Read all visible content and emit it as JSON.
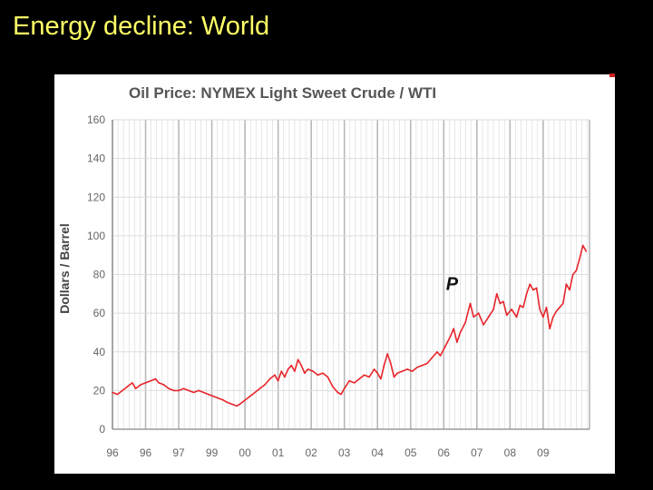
{
  "slide": {
    "title": "Energy decline: World"
  },
  "colors": {
    "background": "#000000",
    "title": "#ffff66",
    "line": "#e8252b",
    "major_grid": "#b8b8b8",
    "minor_grid": "#dddddd"
  },
  "chart_data": {
    "type": "line",
    "title": "Oil Price: NYMEX Light Sweet Crude / WTI",
    "xlabel": "",
    "ylabel": "Dollars / Barrel",
    "ylim": [
      0,
      160
    ],
    "xlim": [
      1995.6,
      2010.0
    ],
    "yticks": [
      0,
      20,
      40,
      60,
      80,
      100,
      120,
      140,
      160
    ],
    "xticks": [
      {
        "label": "96",
        "x": 1995.6
      },
      {
        "label": "96",
        "x": 1996.6
      },
      {
        "label": "97",
        "x": 1997.6
      },
      {
        "label": "99",
        "x": 1998.6
      },
      {
        "label": "00",
        "x": 1999.6
      },
      {
        "label": "01",
        "x": 2000.6
      },
      {
        "label": "02",
        "x": 2001.6
      },
      {
        "label": "03",
        "x": 2002.6
      },
      {
        "label": "04",
        "x": 2003.6
      },
      {
        "label": "05",
        "x": 2004.6
      },
      {
        "label": "06",
        "x": 2005.6
      },
      {
        "label": "07",
        "x": 2006.6
      },
      {
        "label": "08",
        "x": 2007.6
      },
      {
        "label": "09",
        "x": 2008.6
      }
    ],
    "grid": true,
    "series": [
      {
        "values": [
          [
            1995.6,
            19
          ],
          [
            1995.75,
            18
          ],
          [
            1995.9,
            20
          ],
          [
            1996.05,
            22
          ],
          [
            1996.2,
            24
          ],
          [
            1996.3,
            21
          ],
          [
            1996.45,
            23
          ],
          [
            1996.6,
            24
          ],
          [
            1996.75,
            25
          ],
          [
            1996.9,
            26
          ],
          [
            1997.0,
            24
          ],
          [
            1997.15,
            23
          ],
          [
            1997.3,
            21
          ],
          [
            1997.45,
            20
          ],
          [
            1997.6,
            20
          ],
          [
            1997.75,
            21
          ],
          [
            1997.9,
            20
          ],
          [
            1998.05,
            19
          ],
          [
            1998.2,
            20
          ],
          [
            1998.35,
            19
          ],
          [
            1998.5,
            18
          ],
          [
            1998.65,
            17
          ],
          [
            1998.8,
            16
          ],
          [
            1998.95,
            15
          ],
          [
            1999.05,
            14
          ],
          [
            1999.2,
            13
          ],
          [
            1999.35,
            12
          ],
          [
            1999.45,
            13
          ],
          [
            1999.6,
            15
          ],
          [
            1999.75,
            17
          ],
          [
            1999.9,
            19
          ],
          [
            2000.05,
            21
          ],
          [
            2000.2,
            23
          ],
          [
            2000.35,
            26
          ],
          [
            2000.5,
            28
          ],
          [
            2000.6,
            25
          ],
          [
            2000.7,
            30
          ],
          [
            2000.8,
            27
          ],
          [
            2000.9,
            31
          ],
          [
            2001.0,
            33
          ],
          [
            2001.1,
            30
          ],
          [
            2001.2,
            36
          ],
          [
            2001.3,
            33
          ],
          [
            2001.4,
            29
          ],
          [
            2001.5,
            31
          ],
          [
            2001.65,
            30
          ],
          [
            2001.8,
            28
          ],
          [
            2001.95,
            29
          ],
          [
            2002.1,
            27
          ],
          [
            2002.25,
            22
          ],
          [
            2002.4,
            19
          ],
          [
            2002.5,
            18
          ],
          [
            2002.6,
            21
          ],
          [
            2002.75,
            25
          ],
          [
            2002.9,
            24
          ],
          [
            2003.05,
            26
          ],
          [
            2003.2,
            28
          ],
          [
            2003.35,
            27
          ],
          [
            2003.5,
            31
          ],
          [
            2003.6,
            29
          ],
          [
            2003.7,
            26
          ],
          [
            2003.8,
            33
          ],
          [
            2003.9,
            39
          ],
          [
            2004.0,
            34
          ],
          [
            2004.1,
            27
          ],
          [
            2004.2,
            29
          ],
          [
            2004.35,
            30
          ],
          [
            2004.5,
            31
          ],
          [
            2004.65,
            30
          ],
          [
            2004.8,
            32
          ],
          [
            2004.95,
            33
          ],
          [
            2005.1,
            34
          ],
          [
            2005.25,
            37
          ],
          [
            2005.4,
            40
          ],
          [
            2005.5,
            38
          ],
          [
            2005.65,
            43
          ],
          [
            2005.8,
            48
          ],
          [
            2005.9,
            52
          ],
          [
            2006.0,
            45
          ],
          [
            2006.1,
            50
          ],
          [
            2006.25,
            55
          ],
          [
            2006.4,
            65
          ],
          [
            2006.5,
            58
          ],
          [
            2006.65,
            60
          ],
          [
            2006.8,
            54
          ],
          [
            2006.95,
            58
          ],
          [
            2007.1,
            62
          ],
          [
            2007.2,
            70
          ],
          [
            2007.3,
            65
          ],
          [
            2007.4,
            66
          ],
          [
            2007.5,
            59
          ],
          [
            2007.65,
            62
          ],
          [
            2007.8,
            58
          ],
          [
            2007.9,
            64
          ],
          [
            2008.0,
            63
          ],
          [
            2008.1,
            70
          ],
          [
            2008.2,
            75
          ],
          [
            2008.3,
            72
          ],
          [
            2008.4,
            73
          ],
          [
            2008.5,
            62
          ],
          [
            2008.6,
            58
          ],
          [
            2008.7,
            63
          ],
          [
            2008.8,
            52
          ],
          [
            2008.9,
            58
          ],
          [
            2009.0,
            61
          ],
          [
            2009.1,
            63
          ],
          [
            2009.2,
            65
          ],
          [
            2009.3,
            75
          ],
          [
            2009.4,
            72
          ],
          [
            2009.5,
            80
          ],
          [
            2009.6,
            82
          ],
          [
            2009.7,
            88
          ],
          [
            2009.8,
            95
          ],
          [
            2009.9,
            92
          ]
        ]
      }
    ],
    "annotation": {
      "text": "P",
      "x": 2005.85,
      "y": 72
    }
  }
}
